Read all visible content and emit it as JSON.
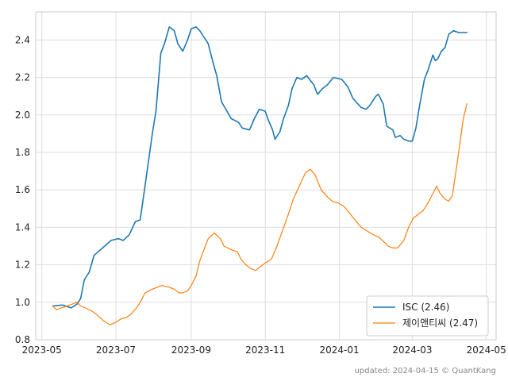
{
  "chart_data": {
    "type": "line",
    "title": "",
    "xlabel": "",
    "ylabel": "",
    "x_ticks": [
      "2023-05",
      "2023-07",
      "2023-09",
      "2023-11",
      "2024-01",
      "2024-03",
      "2024-05"
    ],
    "y_ticks": [
      "0.8",
      "1.0",
      "1.2",
      "1.4",
      "1.6",
      "1.8",
      "2.0",
      "2.2",
      "2.4"
    ],
    "xlim": [
      "2023-04-26",
      "2024-05-09"
    ],
    "ylim": [
      0.8,
      2.55
    ],
    "grid": true,
    "legend_position": "bottom-right",
    "footer": "updated: 2024-04-15 © QuantKang",
    "series": [
      {
        "name": "ISC (2.46)",
        "color": "#1f77b4",
        "points": [
          [
            "2023-05-10",
            0.98
          ],
          [
            "2023-05-18",
            0.985
          ],
          [
            "2023-05-25",
            0.97
          ],
          [
            "2023-05-30",
            0.99
          ],
          [
            "2023-06-02",
            1.02
          ],
          [
            "2023-06-05",
            1.12
          ],
          [
            "2023-06-09",
            1.16
          ],
          [
            "2023-06-13",
            1.25
          ],
          [
            "2023-06-20",
            1.29
          ],
          [
            "2023-06-27",
            1.33
          ],
          [
            "2023-07-03",
            1.34
          ],
          [
            "2023-07-07",
            1.33
          ],
          [
            "2023-07-12",
            1.36
          ],
          [
            "2023-07-17",
            1.43
          ],
          [
            "2023-07-21",
            1.44
          ],
          [
            "2023-07-25",
            1.62
          ],
          [
            "2023-07-31",
            1.9
          ],
          [
            "2023-08-03",
            2.02
          ],
          [
            "2023-08-07",
            2.33
          ],
          [
            "2023-08-10",
            2.38
          ],
          [
            "2023-08-14",
            2.47
          ],
          [
            "2023-08-18",
            2.45
          ],
          [
            "2023-08-21",
            2.38
          ],
          [
            "2023-08-25",
            2.34
          ],
          [
            "2023-08-29",
            2.4
          ],
          [
            "2023-09-01",
            2.46
          ],
          [
            "2023-09-05",
            2.47
          ],
          [
            "2023-09-08",
            2.45
          ],
          [
            "2023-09-12",
            2.41
          ],
          [
            "2023-09-15",
            2.38
          ],
          [
            "2023-09-19",
            2.28
          ],
          [
            "2023-09-22",
            2.21
          ],
          [
            "2023-09-26",
            2.07
          ],
          [
            "2023-10-04",
            1.98
          ],
          [
            "2023-10-10",
            1.96
          ],
          [
            "2023-10-13",
            1.93
          ],
          [
            "2023-10-19",
            1.92
          ],
          [
            "2023-10-23",
            1.98
          ],
          [
            "2023-10-27",
            2.03
          ],
          [
            "2023-11-01",
            2.02
          ],
          [
            "2023-11-03",
            1.98
          ],
          [
            "2023-11-07",
            1.92
          ],
          [
            "2023-11-09",
            1.87
          ],
          [
            "2023-11-13",
            1.91
          ],
          [
            "2023-11-16",
            1.98
          ],
          [
            "2023-11-20",
            2.05
          ],
          [
            "2023-11-23",
            2.14
          ],
          [
            "2023-11-27",
            2.2
          ],
          [
            "2023-12-01",
            2.19
          ],
          [
            "2023-12-05",
            2.21
          ],
          [
            "2023-12-11",
            2.16
          ],
          [
            "2023-12-14",
            2.11
          ],
          [
            "2023-12-18",
            2.14
          ],
          [
            "2023-12-22",
            2.16
          ],
          [
            "2023-12-27",
            2.2
          ],
          [
            "2024-01-03",
            2.19
          ],
          [
            "2024-01-08",
            2.15
          ],
          [
            "2024-01-12",
            2.09
          ],
          [
            "2024-01-16",
            2.06
          ],
          [
            "2024-01-19",
            2.04
          ],
          [
            "2024-01-23",
            2.03
          ],
          [
            "2024-01-26",
            2.05
          ],
          [
            "2024-01-31",
            2.1
          ],
          [
            "2024-02-02",
            2.11
          ],
          [
            "2024-02-06",
            2.06
          ],
          [
            "2024-02-09",
            1.94
          ],
          [
            "2024-02-14",
            1.92
          ],
          [
            "2024-02-16",
            1.88
          ],
          [
            "2024-02-20",
            1.89
          ],
          [
            "2024-02-23",
            1.87
          ],
          [
            "2024-02-27",
            1.86
          ],
          [
            "2024-03-01",
            1.86
          ],
          [
            "2024-03-04",
            1.93
          ],
          [
            "2024-03-07",
            2.05
          ],
          [
            "2024-03-11",
            2.19
          ],
          [
            "2024-03-14",
            2.24
          ],
          [
            "2024-03-18",
            2.32
          ],
          [
            "2024-03-20",
            2.29
          ],
          [
            "2024-03-22",
            2.3
          ],
          [
            "2024-03-25",
            2.34
          ],
          [
            "2024-03-28",
            2.36
          ],
          [
            "2024-03-31",
            2.43
          ],
          [
            "2024-04-04",
            2.45
          ],
          [
            "2024-04-08",
            2.44
          ],
          [
            "2024-04-12",
            2.44
          ],
          [
            "2024-04-15",
            2.44
          ]
        ]
      },
      {
        "name": "제이앤티씨 (2.47)",
        "color": "#ff7f0e",
        "points": [
          [
            "2023-05-10",
            0.98
          ],
          [
            "2023-05-13",
            0.96
          ],
          [
            "2023-05-17",
            0.97
          ],
          [
            "2023-05-22",
            0.98
          ],
          [
            "2023-05-26",
            0.99
          ],
          [
            "2023-05-30",
            1.0
          ],
          [
            "2023-06-02",
            0.98
          ],
          [
            "2023-06-06",
            0.97
          ],
          [
            "2023-06-12",
            0.95
          ],
          [
            "2023-06-16",
            0.93
          ],
          [
            "2023-06-21",
            0.9
          ],
          [
            "2023-06-26",
            0.88
          ],
          [
            "2023-06-30",
            0.89
          ],
          [
            "2023-07-05",
            0.91
          ],
          [
            "2023-07-10",
            0.92
          ],
          [
            "2023-07-14",
            0.94
          ],
          [
            "2023-07-18",
            0.97
          ],
          [
            "2023-07-21",
            1.0
          ],
          [
            "2023-07-25",
            1.05
          ],
          [
            "2023-07-31",
            1.07
          ],
          [
            "2023-08-04",
            1.08
          ],
          [
            "2023-08-08",
            1.09
          ],
          [
            "2023-08-14",
            1.08
          ],
          [
            "2023-08-18",
            1.07
          ],
          [
            "2023-08-22",
            1.05
          ],
          [
            "2023-08-25",
            1.05
          ],
          [
            "2023-08-29",
            1.06
          ],
          [
            "2023-09-01",
            1.09
          ],
          [
            "2023-09-05",
            1.14
          ],
          [
            "2023-09-08",
            1.22
          ],
          [
            "2023-09-12",
            1.29
          ],
          [
            "2023-09-15",
            1.34
          ],
          [
            "2023-09-20",
            1.37
          ],
          [
            "2023-09-25",
            1.34
          ],
          [
            "2023-09-28",
            1.3
          ],
          [
            "2023-10-04",
            1.28
          ],
          [
            "2023-10-09",
            1.27
          ],
          [
            "2023-10-12",
            1.23
          ],
          [
            "2023-10-16",
            1.2
          ],
          [
            "2023-10-20",
            1.18
          ],
          [
            "2023-10-24",
            1.17
          ],
          [
            "2023-10-28",
            1.19
          ],
          [
            "2023-11-01",
            1.21
          ],
          [
            "2023-11-06",
            1.23
          ],
          [
            "2023-11-10",
            1.29
          ],
          [
            "2023-11-15",
            1.38
          ],
          [
            "2023-11-20",
            1.47
          ],
          [
            "2023-11-24",
            1.55
          ],
          [
            "2023-11-29",
            1.62
          ],
          [
            "2023-12-04",
            1.69
          ],
          [
            "2023-12-08",
            1.71
          ],
          [
            "2023-12-12",
            1.68
          ],
          [
            "2023-12-17",
            1.6
          ],
          [
            "2023-12-21",
            1.57
          ],
          [
            "2023-12-26",
            1.54
          ],
          [
            "2023-12-31",
            1.53
          ],
          [
            "2024-01-05",
            1.51
          ],
          [
            "2024-01-10",
            1.47
          ],
          [
            "2024-01-15",
            1.43
          ],
          [
            "2024-01-19",
            1.4
          ],
          [
            "2024-01-24",
            1.38
          ],
          [
            "2024-01-29",
            1.36
          ],
          [
            "2024-02-02",
            1.35
          ],
          [
            "2024-02-07",
            1.32
          ],
          [
            "2024-02-10",
            1.3
          ],
          [
            "2024-02-14",
            1.29
          ],
          [
            "2024-02-18",
            1.29
          ],
          [
            "2024-02-23",
            1.33
          ],
          [
            "2024-02-27",
            1.4
          ],
          [
            "2024-03-02",
            1.45
          ],
          [
            "2024-03-06",
            1.47
          ],
          [
            "2024-03-10",
            1.49
          ],
          [
            "2024-03-14",
            1.53
          ],
          [
            "2024-03-18",
            1.58
          ],
          [
            "2024-03-21",
            1.62
          ],
          [
            "2024-03-24",
            1.58
          ],
          [
            "2024-03-28",
            1.55
          ],
          [
            "2024-03-31",
            1.54
          ],
          [
            "2024-04-03",
            1.57
          ],
          [
            "2024-04-06",
            1.7
          ],
          [
            "2024-04-09",
            1.84
          ],
          [
            "2024-04-12",
            1.98
          ],
          [
            "2024-04-15",
            2.06
          ]
        ]
      }
    ]
  }
}
